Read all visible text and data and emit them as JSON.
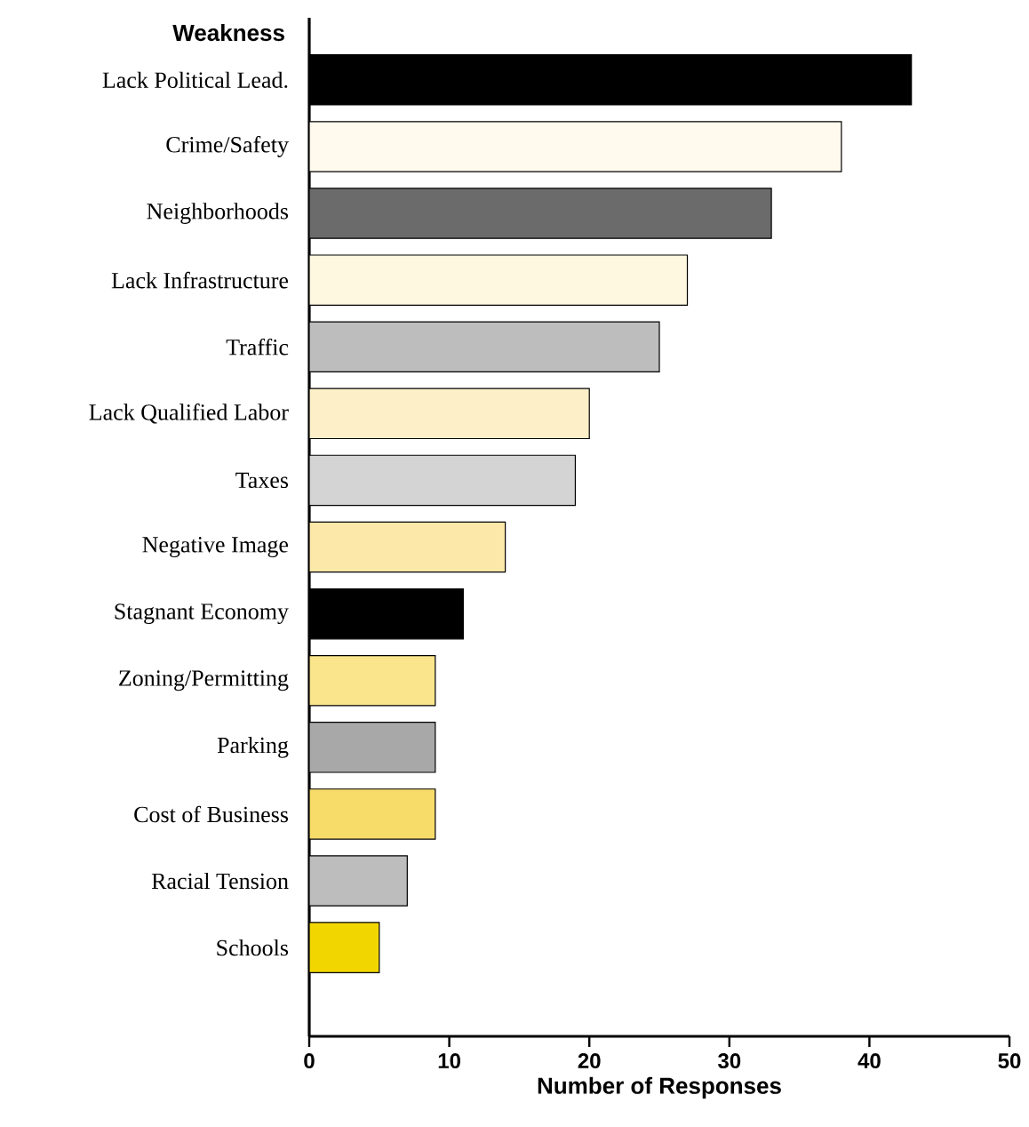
{
  "chart_data": {
    "type": "bar",
    "orientation": "horizontal",
    "ylabel": "Weakness",
    "xlabel": "Number of Responses",
    "categories": [
      "Lack Political Lead.",
      "Crime/Safety",
      "Neighborhoods",
      "Lack Infrastructure",
      "Traffic",
      "Lack Qualified Labor",
      "Taxes",
      "Negative Image",
      "Stagnant Economy",
      "Zoning/Permitting",
      "Parking",
      "Cost of Business",
      "Racial Tension",
      "Schools"
    ],
    "values": [
      43,
      38,
      33,
      27,
      25,
      20,
      19,
      14,
      11,
      9,
      9,
      9,
      7,
      5
    ],
    "colors": [
      "#000000",
      "#fffaed",
      "#6b6b6b",
      "#fff8e0",
      "#bdbdbd",
      "#fdf0c8",
      "#d4d4d4",
      "#fce8a8",
      "#000000",
      "#fae48c",
      "#a8a8a8",
      "#f8dc6a",
      "#bdbdbd",
      "#f2d600"
    ],
    "xlim": [
      0,
      50
    ],
    "xticks": [
      0,
      10,
      20,
      30,
      40,
      50
    ]
  }
}
